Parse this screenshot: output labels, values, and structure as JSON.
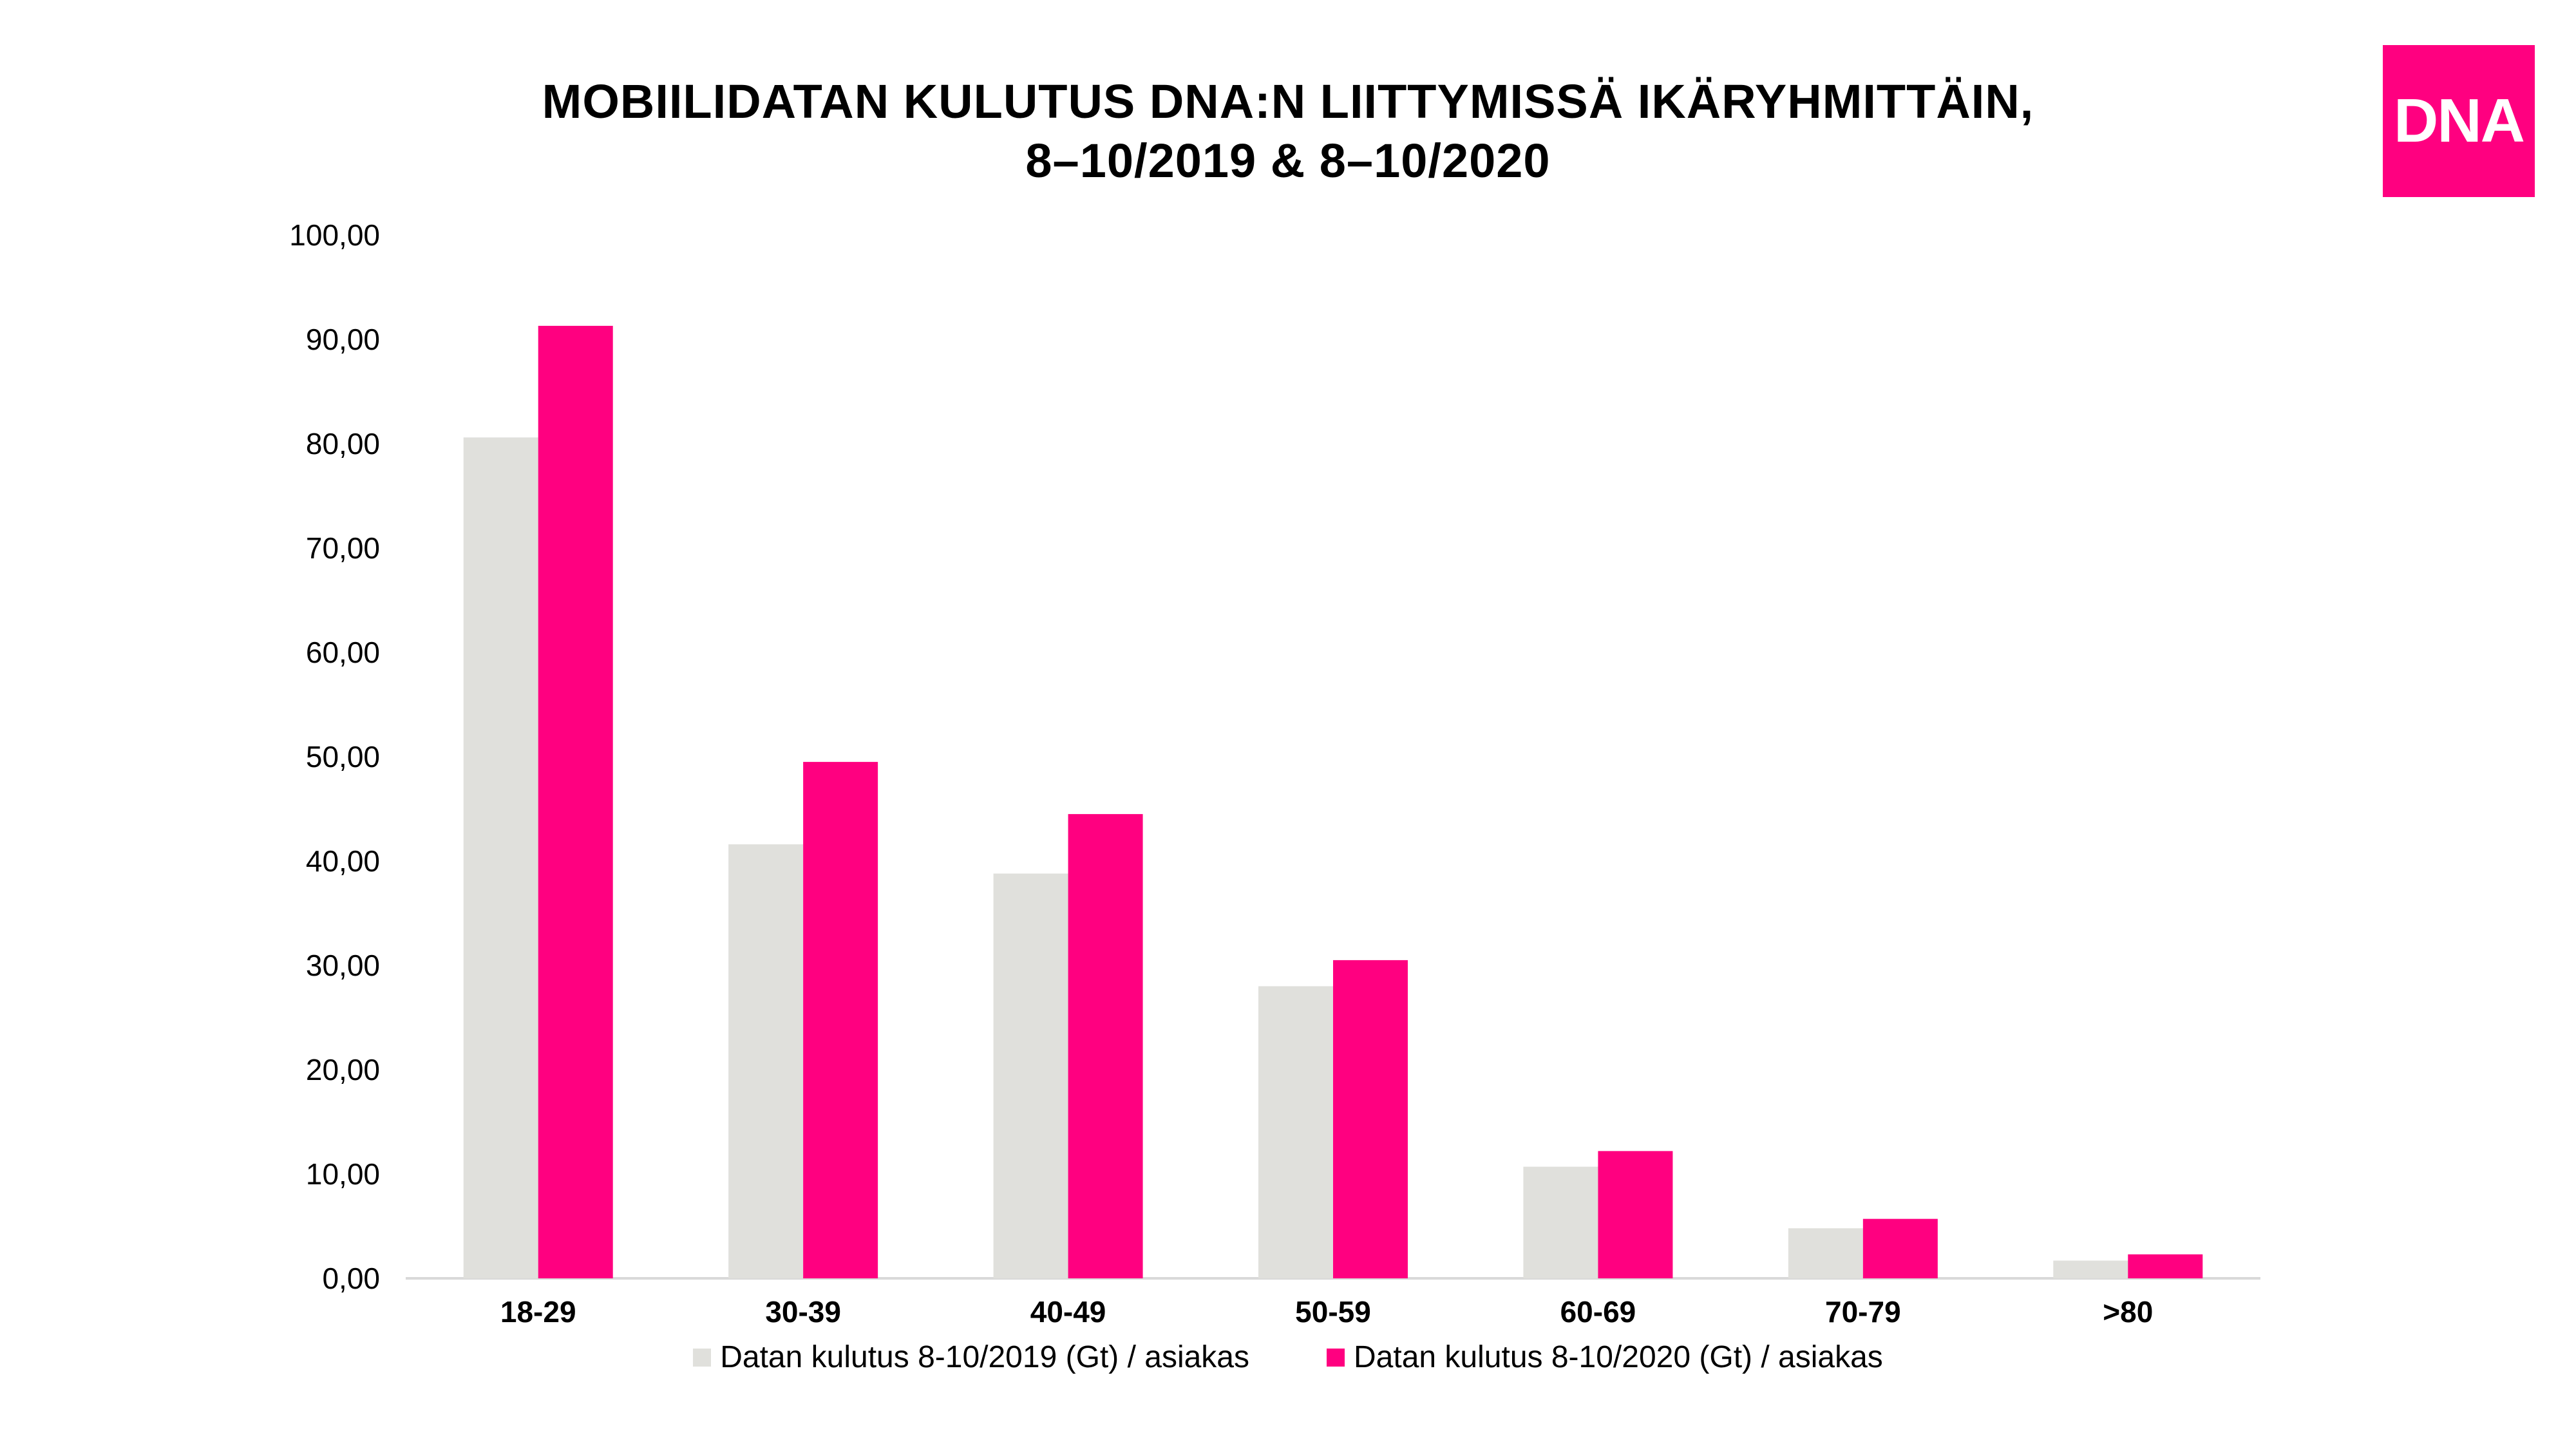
{
  "title_line1": "MOBIILIDATAN KULUTUS DNA:N LIITTYMISSÄ IKÄRYHMITTÄIN,",
  "title_line2": "8–10/2019 & 8–10/2020",
  "logo_text": "DNA",
  "colors": {
    "series_2019": "#E0E0DC",
    "series_2020": "#FF0080",
    "logo_bg": "#FF0080",
    "axis": "#D9D9D9"
  },
  "chart_data": {
    "type": "bar",
    "title": "MOBIILIDATAN KULUTUS DNA:N LIITTYMISSÄ IKÄRYHMITTÄIN, 8–10/2019 & 8–10/2020",
    "categories": [
      "18-29",
      "30-39",
      "40-49",
      "50-59",
      "60-69",
      "70-79",
      ">80"
    ],
    "series": [
      {
        "name": "Datan kulutus 8-10/2019 (Gt) / asiakas",
        "values": [
          80.6,
          41.6,
          38.8,
          28.0,
          10.7,
          4.8,
          1.7
        ]
      },
      {
        "name": "Datan kulutus 8-10/2020 (Gt) / asiakas",
        "values": [
          91.3,
          49.5,
          44.5,
          30.5,
          12.2,
          5.7,
          2.3
        ]
      }
    ],
    "yticks": [
      "0,00",
      "10,00",
      "20,00",
      "30,00",
      "40,00",
      "50,00",
      "60,00",
      "70,00",
      "80,00",
      "90,00",
      "100,00"
    ],
    "ylim": [
      0,
      100
    ],
    "legend_position": "bottom",
    "grid": false
  }
}
